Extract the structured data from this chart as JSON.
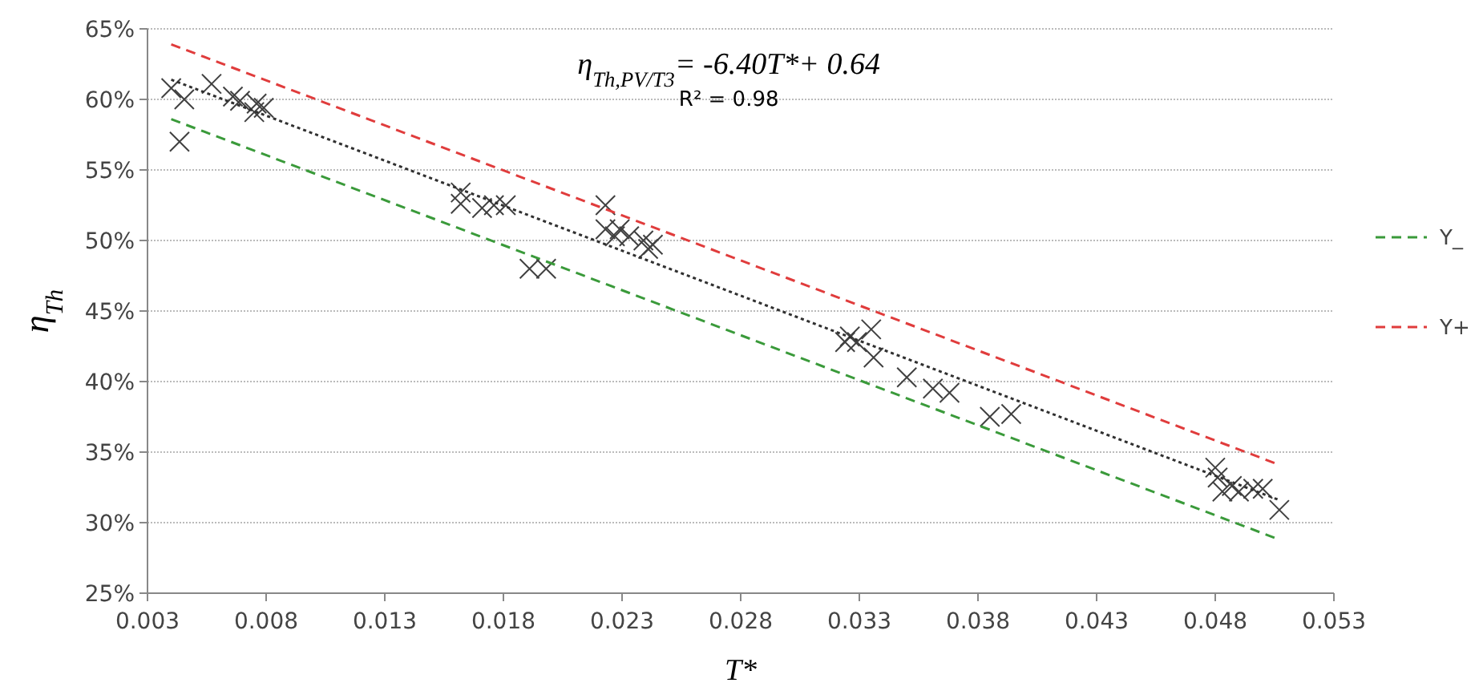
{
  "chart_data": {
    "type": "scatter",
    "xlabel": "T*",
    "ylabel": "η$_{Th}$",
    "annotations": [
      "η$_{Th,PV/T3}$= -6.40T*+ 0.64",
      "R² = 0.98"
    ],
    "xlim": [
      0.003,
      0.053
    ],
    "xticks": [
      0.003,
      0.008,
      0.013,
      0.018,
      0.023,
      0.028,
      0.033,
      0.038,
      0.043,
      0.048,
      0.053
    ],
    "ylim": [
      0.25,
      0.65
    ],
    "yticks": [
      {
        "value": 0.25,
        "label": "25%"
      },
      {
        "value": 0.3,
        "label": "30%"
      },
      {
        "value": 0.35,
        "label": "35%"
      },
      {
        "value": 0.4,
        "label": "40%"
      },
      {
        "value": 0.45,
        "label": "45%"
      },
      {
        "value": 0.5,
        "label": "50%"
      },
      {
        "value": 0.55,
        "label": "55%"
      },
      {
        "value": 0.6,
        "label": "60%"
      },
      {
        "value": 0.65,
        "label": "65%"
      }
    ],
    "grid": "y",
    "legend": "right",
    "marker": "cross",
    "series": [
      {
        "color": "#404040",
        "x": [
          0.004,
          0.00455,
          0.00435,
          0.0057,
          0.0066,
          0.0069,
          0.0076,
          0.0075,
          0.0079,
          0.0162,
          0.0162,
          0.0171,
          0.0176,
          0.0181,
          0.0191,
          0.0198,
          0.0223,
          0.0223,
          0.0227,
          0.0229,
          0.0239,
          0.0241,
          0.0243,
          0.0233,
          0.0326,
          0.0329,
          0.0324,
          0.0335,
          0.0336,
          0.035,
          0.0361,
          0.0368,
          0.0385,
          0.0394,
          0.048,
          0.0481,
          0.0483,
          0.0487,
          0.049,
          0.0496,
          0.05,
          0.0507
        ],
        "values": [
          0.608,
          0.6,
          0.57,
          0.611,
          0.602,
          0.599,
          0.597,
          0.591,
          0.594,
          0.534,
          0.526,
          0.523,
          0.525,
          0.525,
          0.48,
          0.48,
          0.525,
          0.508,
          0.503,
          0.508,
          0.5,
          0.494,
          0.497,
          0.503,
          0.432,
          0.428,
          0.428,
          0.437,
          0.417,
          0.403,
          0.395,
          0.392,
          0.375,
          0.377,
          0.339,
          0.332,
          0.322,
          0.326,
          0.322,
          0.324,
          0.324,
          0.309
        ]
      },
      {
        "type": "line",
        "color": "#303030",
        "line_style": "dotted",
        "marker": "none",
        "x": [
          0.004,
          0.0507
        ],
        "values": [
          0.614,
          0.316
        ]
      },
      {
        "type": "line",
        "name": "Y_",
        "color": "#3a9a3a",
        "line_style": "dashed",
        "marker": "none",
        "x": [
          0.004,
          0.0507
        ],
        "values": [
          0.586,
          0.288
        ]
      },
      {
        "type": "line",
        "name": "Y+",
        "color": "#e03c3c",
        "line_style": "dashed",
        "marker": "none",
        "x": [
          0.004,
          0.0507
        ],
        "values": [
          0.639,
          0.341
        ]
      }
    ]
  }
}
